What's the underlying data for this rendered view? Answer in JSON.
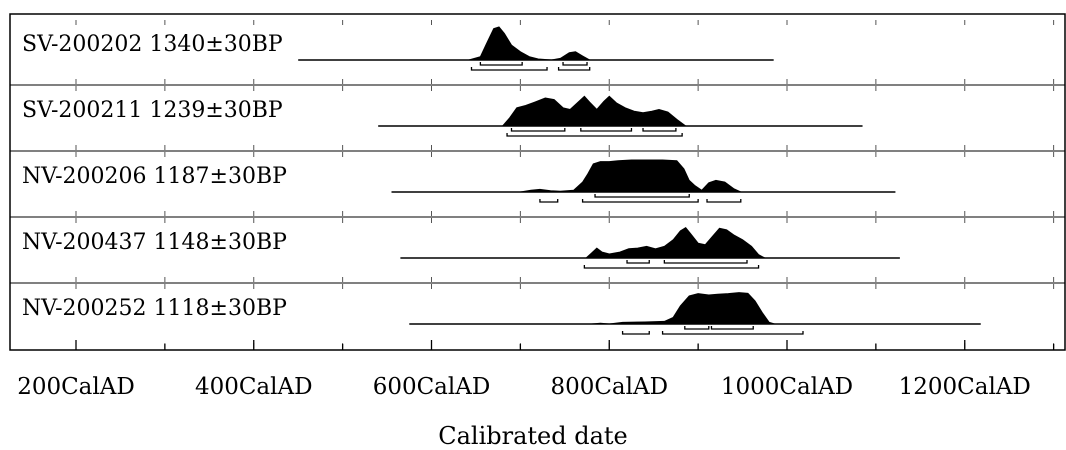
{
  "caption_fragment": "",
  "chart_data": {
    "type": "radiocarbon-calibration-multiplot",
    "xlabel": "Calibrated date",
    "xlim": [
      200,
      1400
    ],
    "x_ticks": [
      {
        "value": 200,
        "label": "200CalAD"
      },
      {
        "value": 400,
        "label": "400CalAD"
      },
      {
        "value": 600,
        "label": "600CalAD"
      },
      {
        "value": 800,
        "label": "800CalAD"
      },
      {
        "value": 1000,
        "label": "1000CalAD"
      },
      {
        "value": 1200,
        "label": "1200CalAD"
      }
    ],
    "grid": "dotted",
    "samples": [
      {
        "label": "SV-200202  1340±30BP",
        "range_line": [
          450,
          985
        ],
        "distribution": [
          [
            642,
            0
          ],
          [
            655,
            0.1
          ],
          [
            662,
            0.5
          ],
          [
            670,
            0.95
          ],
          [
            676,
            1.0
          ],
          [
            682,
            0.8
          ],
          [
            690,
            0.45
          ],
          [
            700,
            0.25
          ],
          [
            710,
            0.1
          ],
          [
            720,
            0.03
          ],
          [
            735,
            0
          ],
          [
            745,
            0.05
          ],
          [
            755,
            0.22
          ],
          [
            762,
            0.25
          ],
          [
            770,
            0.12
          ],
          [
            778,
            0
          ]
        ],
        "ranges_1sigma": [
          [
            655,
            702
          ],
          [
            748,
            775
          ]
        ],
        "ranges_2sigma": [
          [
            645,
            730
          ],
          [
            743,
            778
          ]
        ]
      },
      {
        "label": "SV-200211  1239±30BP",
        "range_line": [
          540,
          1085
        ],
        "distribution": [
          [
            680,
            0
          ],
          [
            688,
            0.25
          ],
          [
            696,
            0.55
          ],
          [
            706,
            0.62
          ],
          [
            716,
            0.72
          ],
          [
            728,
            0.85
          ],
          [
            738,
            0.8
          ],
          [
            748,
            0.55
          ],
          [
            756,
            0.5
          ],
          [
            764,
            0.7
          ],
          [
            772,
            0.9
          ],
          [
            778,
            0.72
          ],
          [
            786,
            0.5
          ],
          [
            794,
            0.75
          ],
          [
            800,
            0.9
          ],
          [
            808,
            0.7
          ],
          [
            818,
            0.55
          ],
          [
            828,
            0.45
          ],
          [
            838,
            0.4
          ],
          [
            848,
            0.45
          ],
          [
            856,
            0.5
          ],
          [
            866,
            0.42
          ],
          [
            876,
            0.2
          ],
          [
            886,
            0
          ]
        ],
        "ranges_1sigma": [
          [
            690,
            750
          ],
          [
            768,
            825
          ],
          [
            838,
            875
          ]
        ],
        "ranges_2sigma": [
          [
            685,
            882
          ]
        ]
      },
      {
        "label": "NV-200206  1187±30BP",
        "range_line": [
          555,
          1122
        ],
        "distribution": [
          [
            700,
            0
          ],
          [
            712,
            0.05
          ],
          [
            722,
            0.08
          ],
          [
            734,
            0.04
          ],
          [
            745,
            0.02
          ],
          [
            760,
            0.05
          ],
          [
            770,
            0.3
          ],
          [
            776,
            0.55
          ],
          [
            782,
            0.85
          ],
          [
            790,
            0.92
          ],
          [
            800,
            0.92
          ],
          [
            810,
            0.95
          ],
          [
            825,
            0.97
          ],
          [
            840,
            0.97
          ],
          [
            860,
            0.97
          ],
          [
            876,
            0.95
          ],
          [
            884,
            0.7
          ],
          [
            890,
            0.35
          ],
          [
            896,
            0.2
          ],
          [
            904,
            0.05
          ],
          [
            912,
            0.28
          ],
          [
            920,
            0.35
          ],
          [
            930,
            0.3
          ],
          [
            940,
            0.1
          ],
          [
            948,
            0
          ]
        ],
        "ranges_1sigma": [
          [
            784,
            890
          ]
        ],
        "ranges_2sigma": [
          [
            770,
            900
          ],
          [
            910,
            948
          ]
        ],
        "extra_ranges": [
          [
            722,
            742
          ]
        ]
      },
      {
        "label": "NV-200437   1148±30BP",
        "range_line": [
          565,
          1127
        ],
        "distribution": [
          [
            774,
            0
          ],
          [
            780,
            0.15
          ],
          [
            786,
            0.3
          ],
          [
            792,
            0.18
          ],
          [
            800,
            0.12
          ],
          [
            812,
            0.18
          ],
          [
            822,
            0.28
          ],
          [
            832,
            0.3
          ],
          [
            842,
            0.35
          ],
          [
            852,
            0.28
          ],
          [
            862,
            0.35
          ],
          [
            872,
            0.55
          ],
          [
            880,
            0.82
          ],
          [
            886,
            0.92
          ],
          [
            892,
            0.72
          ],
          [
            900,
            0.45
          ],
          [
            908,
            0.4
          ],
          [
            916,
            0.65
          ],
          [
            924,
            0.9
          ],
          [
            932,
            0.85
          ],
          [
            940,
            0.7
          ],
          [
            950,
            0.55
          ],
          [
            960,
            0.35
          ],
          [
            968,
            0.1
          ],
          [
            975,
            0
          ]
        ],
        "ranges_1sigma": [
          [
            820,
            845
          ],
          [
            862,
            955
          ]
        ],
        "ranges_2sigma": [
          [
            772,
            968
          ]
        ]
      },
      {
        "label": "NV-200252  1118±30BP",
        "range_line": [
          575,
          1218
        ],
        "distribution": [
          [
            780,
            0
          ],
          [
            790,
            0.02
          ],
          [
            800,
            0
          ],
          [
            815,
            0.05
          ],
          [
            840,
            0.06
          ],
          [
            862,
            0.08
          ],
          [
            872,
            0.2
          ],
          [
            880,
            0.55
          ],
          [
            890,
            0.85
          ],
          [
            900,
            0.92
          ],
          [
            912,
            0.88
          ],
          [
            922,
            0.9
          ],
          [
            934,
            0.92
          ],
          [
            946,
            0.95
          ],
          [
            956,
            0.93
          ],
          [
            964,
            0.7
          ],
          [
            972,
            0.35
          ],
          [
            980,
            0.05
          ],
          [
            986,
            0
          ]
        ],
        "ranges_1sigma": [
          [
            885,
            912
          ],
          [
            915,
            962
          ]
        ],
        "ranges_2sigma": [
          [
            815,
            845
          ],
          [
            860,
            1018
          ]
        ]
      }
    ]
  }
}
